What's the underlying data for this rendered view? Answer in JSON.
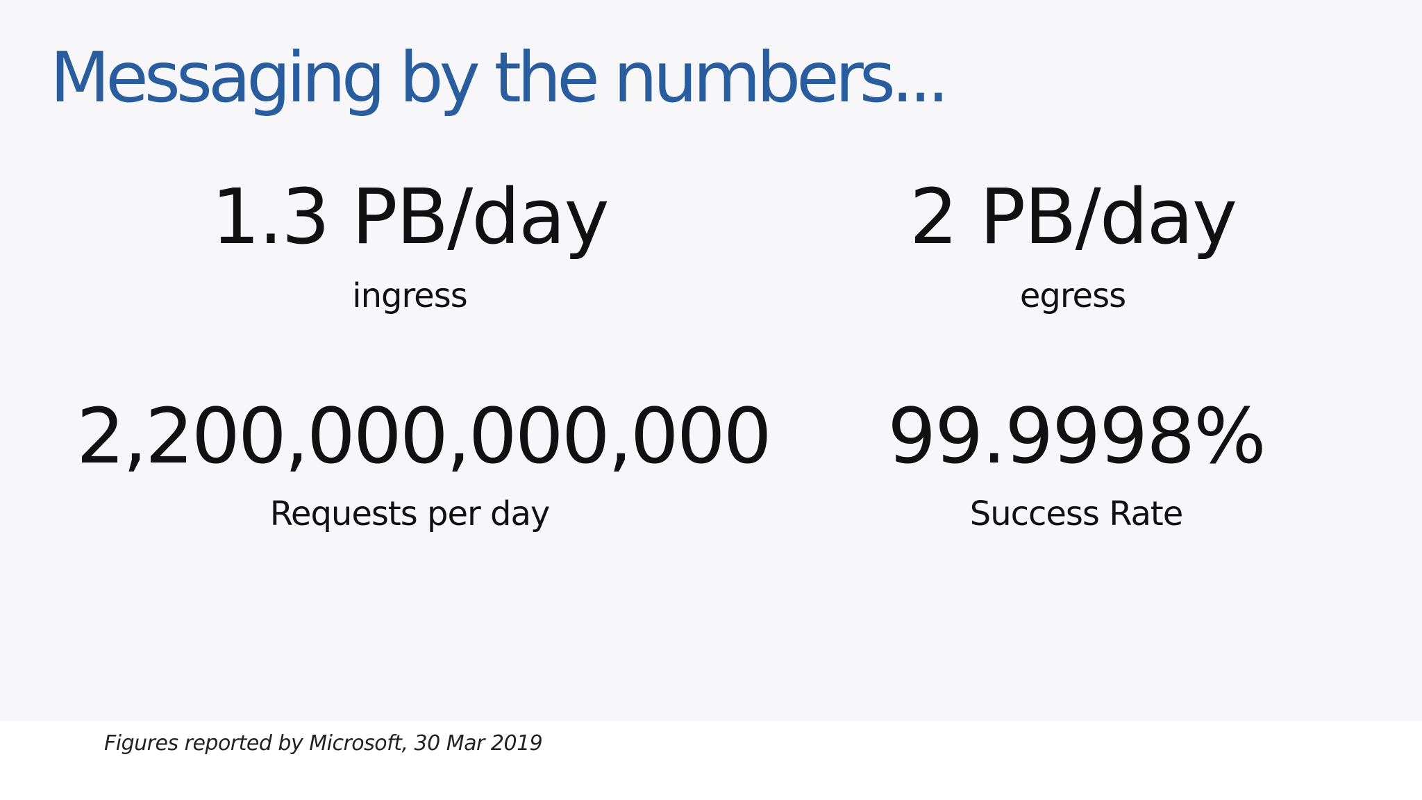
{
  "slide": {
    "title": "Messaging by the numbers...",
    "stats": [
      {
        "value": "1.3 PB/day",
        "label": "ingress"
      },
      {
        "value": "2 PB/day",
        "label": "egress"
      },
      {
        "value": "2,200,000,000,000",
        "label": "Requests per day"
      },
      {
        "value": "99.9998%",
        "label": "Success Rate"
      }
    ]
  },
  "footer": {
    "note": "Figures reported by Microsoft, 30 Mar 2019"
  },
  "colors": {
    "title": "#2a5d9e",
    "text": "#111111",
    "slide_background": "#f7f7f9",
    "page_background": "#ffffff"
  }
}
